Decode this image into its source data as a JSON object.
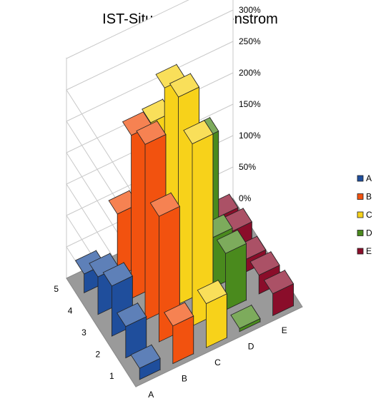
{
  "chart_data": {
    "type": "bar",
    "subtype": "3d-column",
    "title": "IST-Situation, Massenstrom",
    "x_categories": [
      "A",
      "B",
      "C",
      "D",
      "E"
    ],
    "y_categories": [
      "1",
      "2",
      "3",
      "4",
      "5"
    ],
    "zlim": [
      0,
      3.5
    ],
    "z_ticks": [
      "0%",
      "50%",
      "100%",
      "150%",
      "200%",
      "250%",
      "300%"
    ],
    "grid": true,
    "legend_position": "right",
    "series": [
      {
        "name": "A",
        "color": "#1f4e9c",
        "values": [
          0.18,
          0.5,
          0.8,
          0.6,
          0.3
        ]
      },
      {
        "name": "B",
        "color": "#f2520f",
        "values": [
          0.6,
          2.0,
          2.8,
          2.6,
          1.0
        ]
      },
      {
        "name": "C",
        "color": "#f7d21a",
        "values": [
          0.7,
          2.9,
          3.3,
          3.1,
          2.2
        ]
      },
      {
        "name": "D",
        "color": "#4a8a1d",
        "values": [
          0.05,
          0.9,
          0.8,
          2.0,
          1.2
        ]
      },
      {
        "name": "E",
        "color": "#8a0d2a",
        "values": [
          0.35,
          0.3,
          0.2,
          0.3,
          0.18
        ]
      }
    ]
  }
}
